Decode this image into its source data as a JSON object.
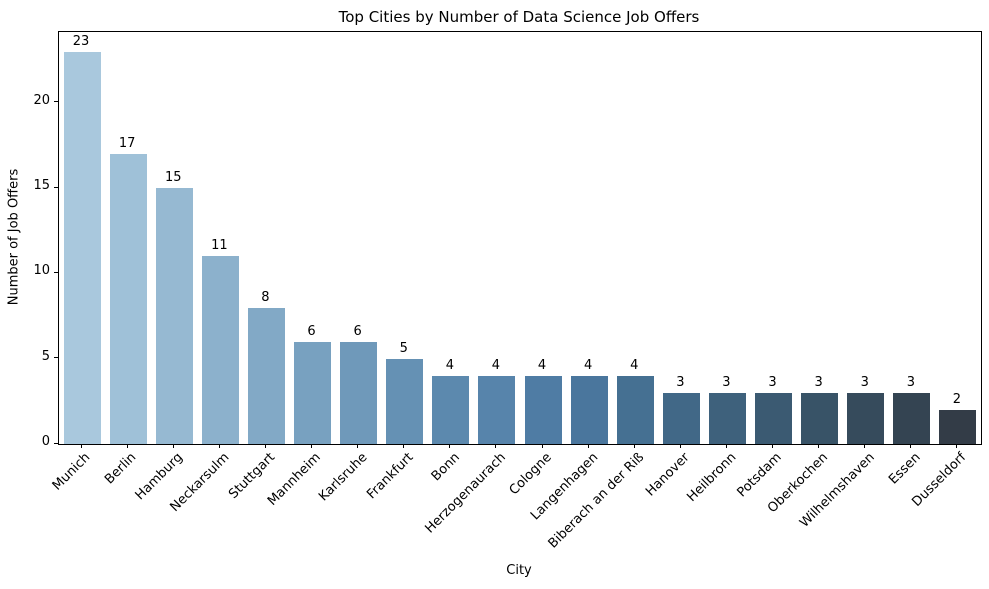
{
  "figure": {
    "background": "#ffffff",
    "text_color": "#000000",
    "spine_color": "#000000"
  },
  "chart_data": {
    "type": "bar",
    "title": "Top Cities by Number of Data Science Job Offers",
    "xlabel": "City",
    "ylabel": "Number of Job Offers",
    "categories": [
      "Munich",
      "Berlin",
      "Hamburg",
      "Neckarsulm",
      "Stuttgart",
      "Mannheim",
      "Karlsruhe",
      "Frankfurt",
      "Bonn",
      "Herzogenaurach",
      "Cologne",
      "Langenhagen",
      "Biberach an der Riß",
      "Hanover",
      "Heilbronn",
      "Potsdam",
      "Oberkochen",
      "Wilhelmshaven",
      "Essen",
      "Dusseldorf"
    ],
    "values": [
      23,
      17,
      15,
      11,
      8,
      6,
      6,
      5,
      4,
      4,
      4,
      4,
      4,
      3,
      3,
      3,
      3,
      3,
      3,
      2
    ],
    "value_labels": [
      "23",
      "17",
      "15",
      "11",
      "8",
      "6",
      "6",
      "5",
      "4",
      "4",
      "4",
      "4",
      "4",
      "3",
      "3",
      "3",
      "3",
      "3",
      "3",
      "2"
    ],
    "bar_colors": [
      "#a9c8dd",
      "#9fc1d8",
      "#96b9d2",
      "#8cb1cc",
      "#82a9c6",
      "#78a1c0",
      "#6f99ba",
      "#6591b4",
      "#5c89ae",
      "#5784ab",
      "#4f7ca4",
      "#4a769d",
      "#457092",
      "#416887",
      "#3e617c",
      "#3b5a72",
      "#385367",
      "#364b5c",
      "#344452",
      "#333c47"
    ],
    "yticks": [
      "0",
      "5",
      "10",
      "15",
      "20"
    ],
    "ytick_values": [
      0,
      5,
      10,
      15,
      20
    ],
    "ylim": [
      0,
      24.15
    ],
    "grid": false,
    "legend": null,
    "bar_orientation": "vertical"
  }
}
